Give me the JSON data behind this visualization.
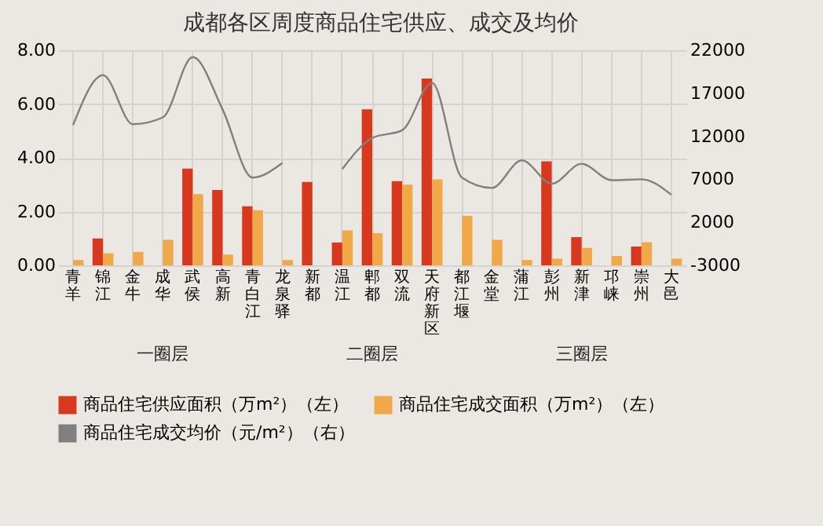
{
  "chart_data": {
    "type": "bar",
    "title": "成都各区周度商品住宅供应、成交及均价",
    "categories": [
      "青羊",
      "锦江",
      "金牛",
      "成华",
      "武侯",
      "高新",
      "青白江",
      "龙泉驿",
      "新都",
      "温江",
      "郫都",
      "双流",
      "天府新区",
      "都江堰",
      "金堂",
      "蒲江",
      "彭州",
      "新津",
      "邛崃",
      "崇州",
      "大邑"
    ],
    "series": [
      {
        "name": "商品住宅供应面积（万m²）（左）",
        "color": "#d7381e",
        "values": [
          0,
          1.0,
          0,
          0,
          3.6,
          2.8,
          2.2,
          0,
          3.1,
          0.85,
          5.8,
          3.13,
          6.95,
          0,
          0,
          0,
          3.87,
          1.05,
          0,
          0.7,
          0
        ]
      },
      {
        "name": "商品住宅成交面积（万m²）（左）",
        "color": "#f0a848",
        "values": [
          0.2,
          0.45,
          0.5,
          0.95,
          2.65,
          0.4,
          2.05,
          0.2,
          0,
          1.3,
          1.2,
          3.0,
          3.2,
          1.84,
          0.95,
          0.2,
          0.25,
          0.65,
          0.35,
          0.86,
          0.25
        ]
      },
      {
        "name": "商品住宅成交均价（元/m²）（右）",
        "color": "#808080",
        "type": "line",
        "axis": "y2",
        "values": [
          13300,
          19100,
          13400,
          14200,
          21200,
          15100,
          7200,
          8900,
          null,
          8200,
          11800,
          12700,
          18200,
          7200,
          6000,
          9200,
          6500,
          8800,
          6900,
          7000,
          5200
        ]
      }
    ],
    "ylim": [
      0,
      8
    ],
    "yticks": [
      {
        "value": 0,
        "label": "0.00"
      },
      {
        "value": 2,
        "label": "2.00"
      },
      {
        "value": 4,
        "label": "4.00"
      },
      {
        "value": 6,
        "label": "6.00"
      },
      {
        "value": 8,
        "label": "8.00"
      }
    ],
    "y2lim": [
      -3000,
      22000
    ],
    "y2ticks": [
      -3000,
      2000,
      7000,
      12000,
      17000,
      22000
    ],
    "annotations": [
      "一圈层",
      "二圈层",
      "三圈层"
    ],
    "grid": true,
    "legend": "bottom",
    "marker": "none"
  }
}
